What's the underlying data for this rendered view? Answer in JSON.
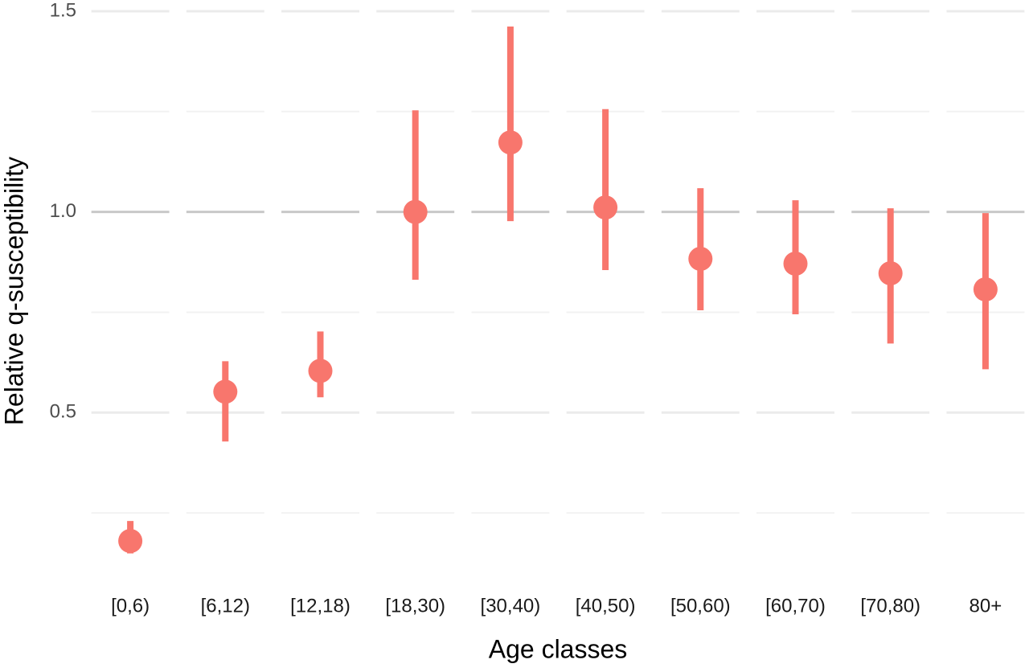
{
  "chart_data": {
    "type": "pointrange",
    "x_label": "Age classes",
    "y_label": "Relative q-susceptibility",
    "categories": [
      "[0,6)",
      "[6,12)",
      "[12,18)",
      "[18,30)",
      "[30,40)",
      "[40,50)",
      "[50,60)",
      "[60,70)",
      "[70,80)",
      "80+"
    ],
    "values": [
      0.18,
      0.552,
      0.604,
      1.0,
      1.173,
      1.011,
      0.883,
      0.871,
      0.847,
      0.807
    ],
    "lower": [
      0.149,
      0.428,
      0.538,
      0.831,
      0.977,
      0.855,
      0.755,
      0.745,
      0.672,
      0.608
    ],
    "upper": [
      0.23,
      0.628,
      0.702,
      1.253,
      1.462,
      1.256,
      1.059,
      1.029,
      1.009,
      0.997
    ],
    "color": "#f8766d",
    "ylim": [
      0.12,
      1.52
    ],
    "yticks": [
      0.5,
      {
        "value": 1,
        "label": "1.0"
      },
      1.5
    ],
    "minor_yticks": [
      0.25,
      0.75,
      1.25
    ],
    "reference_line": 1,
    "grid": true
  }
}
